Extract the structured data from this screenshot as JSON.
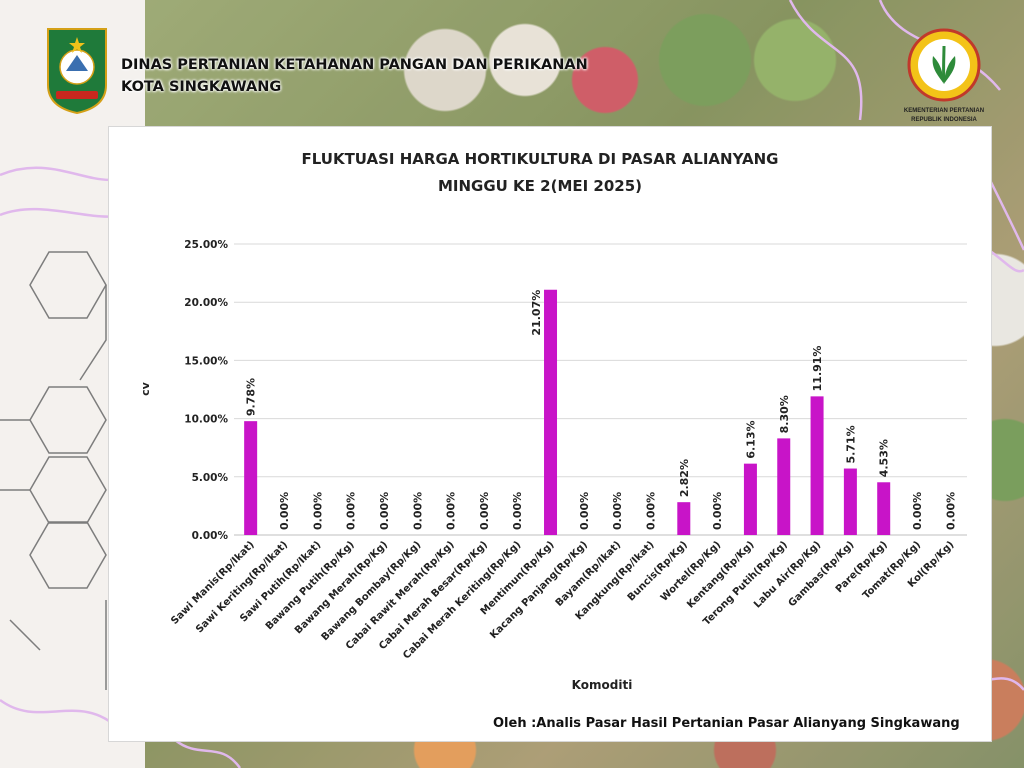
{
  "header": {
    "org_line1": "DINAS PERTANIAN KETAHANAN PANGAN DAN PERIKANAN",
    "org_line2": "KOTA SINGKAWANG",
    "ministry_line1": "KEMENTERIAN PERTANIAN",
    "ministry_line2": "REPUBLIK INDONESIA"
  },
  "footer": {
    "credit": "Oleh :Analis Pasar Hasil Pertanian Pasar Alianyang Singkawang"
  },
  "colors": {
    "bar": "#c814c8",
    "grid": "#d9d9d9"
  },
  "chart_data": {
    "type": "bar",
    "title_line1": "FLUKTUASI HARGA HORTIKULTURA DI PASAR ALIANYANG",
    "title_line2": "MINGGU KE 2(MEI 2025)",
    "xlabel": "Komoditi",
    "ylabel": "cv",
    "ylim": [
      0,
      25
    ],
    "yticks": [
      0,
      5,
      10,
      15,
      20,
      25
    ],
    "ytick_labels": [
      "0.00%",
      "5.00%",
      "10.00%",
      "15.00%",
      "20.00%",
      "25.00%"
    ],
    "grid": true,
    "categories": [
      "Sawi Manis(Rp/Ikat)",
      "Sawi Keriting(Rp/Ikat)",
      "Sawi Putih(Rp/Ikat)",
      "Bawang Putih(Rp/Kg)",
      "Bawang Merah(Rp/Kg)",
      "Bawang Bombay(Rp/Kg)",
      "Cabai Rawit Merah(Rp/Kg)",
      "Cabai Merah Besar(Rp/Kg)",
      "Cabai Merah Keriting(Rp/Kg)",
      "Mentimun(Rp/Kg)",
      "Kacang Panjang(Rp/Kg)",
      "Bayam(Rp/Ikat)",
      "Kangkung(Rp/Ikat)",
      "Buncis(Rp/Kg)",
      "Wortel(Rp/Kg)",
      "Kentang(Rp/Kg)",
      "Terong Putih(Rp/Kg)",
      "Labu Air(Rp/Kg)",
      "Gambas(Rp/Kg)",
      "Pare(Rp/Kg)",
      "Tomat(Rp/Kg)",
      "Kol(Rp/Kg)"
    ],
    "values": [
      9.78,
      0,
      0,
      0,
      0,
      0,
      0,
      0,
      0,
      21.07,
      0,
      0,
      0,
      2.82,
      0,
      6.13,
      8.3,
      11.91,
      5.71,
      4.53,
      0,
      0
    ],
    "data_labels": [
      "9.78%",
      "0.00%",
      "0.00%",
      "0.00%",
      "0.00%",
      "0.00%",
      "0.00%",
      "0.00%",
      "0.00%",
      "21.07%",
      "0.00%",
      "0.00%",
      "0.00%",
      "2.82%",
      "0.00%",
      "6.13%",
      "8.30%",
      "11.91%",
      "5.71%",
      "4.53%",
      "0.00%",
      "0.00%"
    ]
  }
}
